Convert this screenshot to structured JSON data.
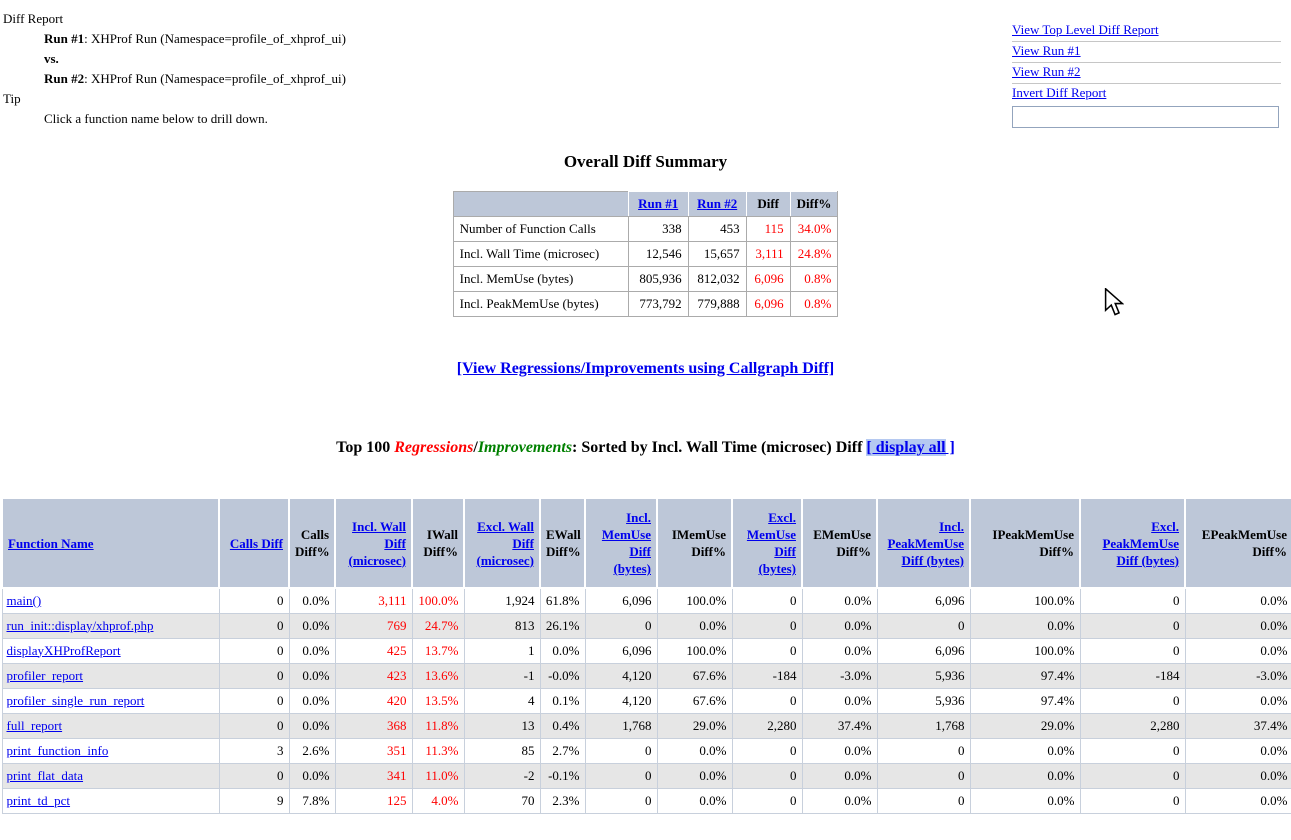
{
  "header": {
    "title": "Diff Report",
    "run1_label": "Run #1",
    "run1_text": ": XHProf Run (Namespace=profile_of_xhprof_ui)",
    "vs_label": "vs.",
    "run2_label": "Run #2",
    "run2_text": ": XHProf Run (Namespace=profile_of_xhprof_ui)",
    "tip_label": "Tip",
    "tip_text": "Click a function name below to drill down."
  },
  "nav": {
    "links": [
      "View Top Level Diff Report",
      "View Run #1",
      "View Run #2",
      "Invert Diff Report"
    ],
    "input_value": "",
    "input_placeholder": ""
  },
  "summary": {
    "title": "Overall Diff Summary",
    "columns": [
      "",
      "Run #1",
      "Run #2",
      "Diff",
      "Diff%"
    ],
    "link_columns": [
      1,
      2
    ],
    "rows": [
      {
        "label": "Number of Function Calls",
        "run1": "338",
        "run2": "453",
        "diff": "115",
        "diff_pct": "34.0%"
      },
      {
        "label": "Incl. Wall Time (microsec)",
        "run1": "12,546",
        "run2": "15,657",
        "diff": "3,111",
        "diff_pct": "24.8%"
      },
      {
        "label": "Incl. MemUse (bytes)",
        "run1": "805,936",
        "run2": "812,032",
        "diff": "6,096",
        "diff_pct": "0.8%"
      },
      {
        "label": "Incl. PeakMemUse (bytes)",
        "run1": "773,792",
        "run2": "779,888",
        "diff": "6,096",
        "diff_pct": "0.8%"
      }
    ]
  },
  "links": {
    "callgraph": "[View Regressions/Improvements using Callgraph Diff]"
  },
  "top_table": {
    "title": {
      "prefix": "Top 100 ",
      "regressions": "Regressions",
      "slash": "/",
      "improvements": "Improvements",
      "suffix": ": Sorted by Incl. Wall Time (microsec) Diff ",
      "display_all_hl": "[ display all",
      "display_all_tail": " ]"
    },
    "headers": [
      {
        "label": "Function Name",
        "link": true
      },
      {
        "label": "Calls Diff",
        "link": true
      },
      {
        "label": "Calls Diff%",
        "link": false
      },
      {
        "label": "Incl. Wall Diff (microsec)",
        "link": true
      },
      {
        "label": "IWall Diff%",
        "link": false
      },
      {
        "label": "Excl. Wall Diff (microsec)",
        "link": true
      },
      {
        "label": "EWall Diff%",
        "link": false
      },
      {
        "label": "Incl. MemUse Diff (bytes)",
        "link": true
      },
      {
        "label": "IMemUse Diff%",
        "link": false
      },
      {
        "label": "Excl. MemUse Diff (bytes)",
        "link": true
      },
      {
        "label": "EMemUse Diff%",
        "link": false
      },
      {
        "label": "Incl. PeakMemUse Diff (bytes)",
        "link": true
      },
      {
        "label": "IPeakMemUse Diff%",
        "link": false
      },
      {
        "label": "Excl. PeakMemUse Diff (bytes)",
        "link": true
      },
      {
        "label": "EPeakMemUse Diff%",
        "link": false
      }
    ],
    "red_cells": [
      2,
      3
    ],
    "rows": [
      {
        "name": "main()",
        "cells": [
          "0",
          "0.0%",
          "3,111",
          "100.0%",
          "1,924",
          "61.8%",
          "6,096",
          "100.0%",
          "0",
          "0.0%",
          "6,096",
          "100.0%",
          "0",
          "0.0%"
        ]
      },
      {
        "name": "run_init::display/xhprof.php",
        "cells": [
          "0",
          "0.0%",
          "769",
          "24.7%",
          "813",
          "26.1%",
          "0",
          "0.0%",
          "0",
          "0.0%",
          "0",
          "0.0%",
          "0",
          "0.0%"
        ]
      },
      {
        "name": "displayXHProfReport",
        "cells": [
          "0",
          "0.0%",
          "425",
          "13.7%",
          "1",
          "0.0%",
          "6,096",
          "100.0%",
          "0",
          "0.0%",
          "6,096",
          "100.0%",
          "0",
          "0.0%"
        ]
      },
      {
        "name": "profiler_report",
        "cells": [
          "0",
          "0.0%",
          "423",
          "13.6%",
          "-1",
          "-0.0%",
          "4,120",
          "67.6%",
          "-184",
          "-3.0%",
          "5,936",
          "97.4%",
          "-184",
          "-3.0%"
        ]
      },
      {
        "name": "profiler_single_run_report",
        "cells": [
          "0",
          "0.0%",
          "420",
          "13.5%",
          "4",
          "0.1%",
          "4,120",
          "67.6%",
          "0",
          "0.0%",
          "5,936",
          "97.4%",
          "0",
          "0.0%"
        ]
      },
      {
        "name": "full_report",
        "cells": [
          "0",
          "0.0%",
          "368",
          "11.8%",
          "13",
          "0.4%",
          "1,768",
          "29.0%",
          "2,280",
          "37.4%",
          "1,768",
          "29.0%",
          "2,280",
          "37.4%"
        ]
      },
      {
        "name": "print_function_info",
        "cells": [
          "3",
          "2.6%",
          "351",
          "11.3%",
          "85",
          "2.7%",
          "0",
          "0.0%",
          "0",
          "0.0%",
          "0",
          "0.0%",
          "0",
          "0.0%"
        ]
      },
      {
        "name": "print_flat_data",
        "cells": [
          "0",
          "0.0%",
          "341",
          "11.0%",
          "-2",
          "-0.1%",
          "0",
          "0.0%",
          "0",
          "0.0%",
          "0",
          "0.0%",
          "0",
          "0.0%"
        ]
      },
      {
        "name": "print_td_pct",
        "cells": [
          "9",
          "7.8%",
          "125",
          "4.0%",
          "70",
          "2.3%",
          "0",
          "0.0%",
          "0",
          "0.0%",
          "0",
          "0.0%",
          "0",
          "0.0%"
        ]
      }
    ]
  },
  "colors": {
    "link_blue": "#0000ee",
    "regression_red": "#ff0000",
    "improvement_green": "#008000",
    "table_header_bg": "#bdc7d8",
    "alt_row_bg": "#e6e6e6",
    "highlight_bg": "#b5c9f1"
  }
}
